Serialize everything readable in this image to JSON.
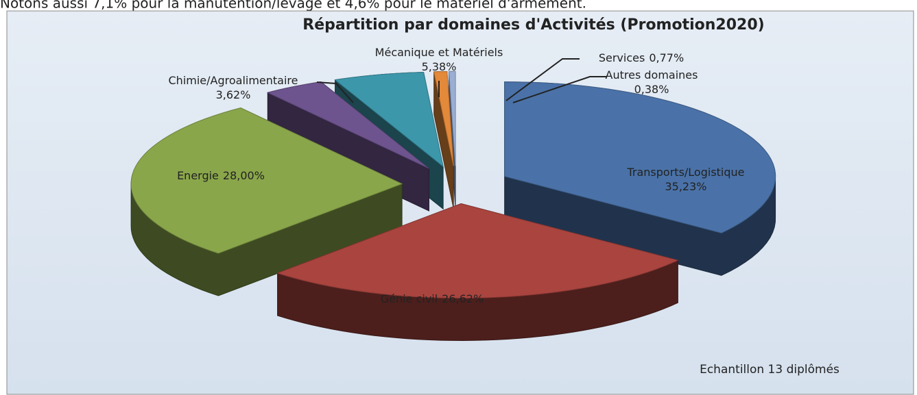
{
  "header_text": "Notons aussi 7,1% pour la manutention/levage et 4,6% pour le matériel d'armement.",
  "chart_data": {
    "type": "pie3d",
    "title": "Répartition par domaines d'Activités (Promotion2020)",
    "categories": [
      "Transports/Logistique",
      "Génie civil",
      "Energie",
      "Chimie/Agroalimentaire",
      "Mécanique et Matériels",
      "Services",
      "Autres domaines"
    ],
    "values": [
      35.23,
      26.62,
      28.0,
      3.62,
      5.38,
      0.77,
      0.38
    ],
    "value_labels": [
      "35,23%",
      "26,62%",
      "28,00%",
      "3,62%",
      "5,38%",
      "0,77%",
      "0,38%"
    ],
    "colors": [
      "#4a72a8",
      "#a9443f",
      "#8aa64b",
      "#6e548e",
      "#3d97ab",
      "#e3893a",
      "#9aaed4"
    ],
    "annotation": "Echantillon 13 diplômés"
  }
}
